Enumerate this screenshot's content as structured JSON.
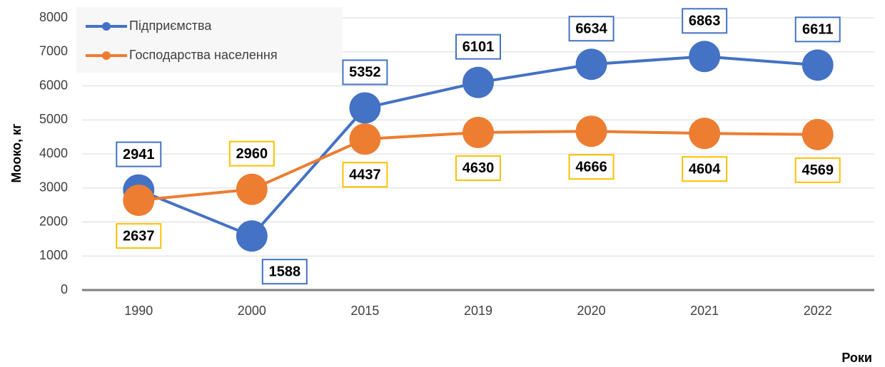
{
  "chart_data": {
    "type": "line",
    "y_axis_label": "Мооко, кг",
    "x_axis_label": "Роки",
    "categories": [
      "1990",
      "2000",
      "2015",
      "2019",
      "2020",
      "2021",
      "2022"
    ],
    "series": [
      {
        "name": "Підприємства",
        "color": "#4472c4",
        "label_border": "#4472c4",
        "values": [
          2941,
          1588,
          5352,
          6101,
          6634,
          6863,
          6611
        ]
      },
      {
        "name": "Господарства населення",
        "color": "#ed7d31",
        "label_border": "#ffc000",
        "values": [
          2637,
          2960,
          4437,
          4630,
          4666,
          4604,
          4569
        ]
      }
    ],
    "ylim": [
      0,
      8000
    ],
    "yticks": [
      0,
      1000,
      2000,
      3000,
      4000,
      5000,
      6000,
      7000,
      8000
    ],
    "grid": true,
    "legend": "top-left"
  }
}
